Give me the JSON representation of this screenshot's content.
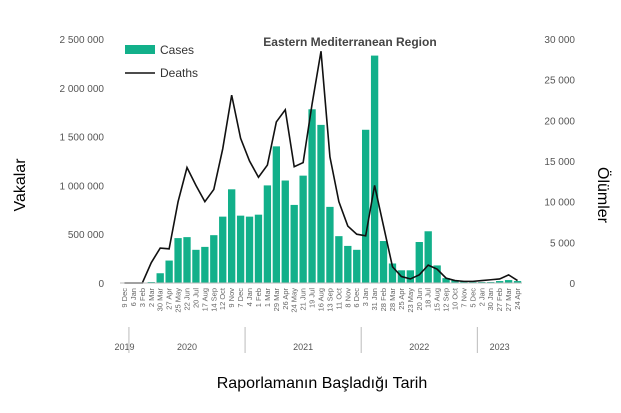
{
  "chart_data": {
    "type": "bar",
    "title": "Eastern Mediterranean Region",
    "xlabel": "Raporlamanın Başladığı Tarih",
    "ylabel": "Vakalar",
    "y2label": "Ölümler",
    "ylim": [
      0,
      2500000
    ],
    "y2lim": [
      0,
      30000
    ],
    "y_ticks": [
      "0",
      "500 000",
      "1 000 000",
      "1 500 000",
      "2 000 000",
      "2 500 000"
    ],
    "y2_ticks": [
      "0",
      "5 000",
      "10 000",
      "15 000",
      "20 000",
      "25 000",
      "30 000"
    ],
    "legend": {
      "position": "top-left",
      "entries": [
        "Cases",
        "Deaths"
      ]
    },
    "categories": [
      "9 Dec",
      "6 Jan",
      "3 Feb",
      "2 Mar",
      "30 Mar",
      "27 Apr",
      "25 May",
      "22 Jun",
      "20 Jul",
      "17 Aug",
      "14 Sep",
      "12 Oct",
      "9 Nov",
      "7 Dec",
      "4 Jan",
      "1 Feb",
      "1 Mar",
      "29 Mar",
      "26 Apr",
      "24 May",
      "21 Jun",
      "19 Jul",
      "16 Aug",
      "13 Sep",
      "11 Oct",
      "8 Nov",
      "6 Dec",
      "3 Jan",
      "31 Jan",
      "28 Feb",
      "28 Mar",
      "25 Apr",
      "23 May",
      "20 Jun",
      "18 Jul",
      "15 Aug",
      "12 Sep",
      "10 Oct",
      "7 Nov",
      "5 Dec",
      "2 Jan",
      "30 Jan",
      "27 Feb",
      "27 Mar",
      "24 Apr"
    ],
    "years": [
      {
        "label": "2019",
        "from": 0,
        "to": 0
      },
      {
        "label": "2020",
        "from": 1,
        "to": 13
      },
      {
        "label": "2021",
        "from": 14,
        "to": 26
      },
      {
        "label": "2022",
        "from": 27,
        "to": 39
      },
      {
        "label": "2023",
        "from": 40,
        "to": 44
      }
    ],
    "series": [
      {
        "name": "Cases",
        "type": "bar",
        "axis": "left",
        "color": "#12b08a",
        "values": [
          0,
          0,
          0,
          10000,
          100000,
          230000,
          460000,
          470000,
          340000,
          370000,
          490000,
          680000,
          960000,
          690000,
          680000,
          700000,
          1000000,
          1400000,
          1050000,
          800000,
          1100000,
          1780000,
          1620000,
          780000,
          480000,
          380000,
          340000,
          1570000,
          2330000,
          430000,
          200000,
          130000,
          130000,
          420000,
          530000,
          180000,
          50000,
          30000,
          20000,
          10000,
          10000,
          10000,
          20000,
          30000,
          20000
        ]
      },
      {
        "name": "Deaths",
        "type": "line",
        "axis": "right",
        "color": "#111111",
        "values": [
          0,
          0,
          0,
          2500,
          4300,
          4200,
          10000,
          14200,
          12000,
          10000,
          11500,
          16500,
          23100,
          17800,
          15000,
          13000,
          14500,
          19800,
          21300,
          14300,
          14800,
          22000,
          28500,
          15500,
          10000,
          7000,
          6000,
          5800,
          12000,
          7000,
          2000,
          800,
          500,
          1000,
          2200,
          1700,
          600,
          300,
          200,
          200,
          300,
          400,
          500,
          1000,
          300
        ]
      }
    ]
  }
}
